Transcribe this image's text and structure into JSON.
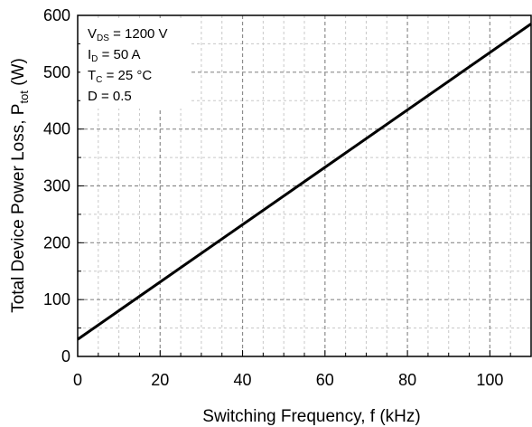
{
  "chart_data": {
    "type": "line",
    "xlabel": "Switching Frequency, f (kHz)",
    "ylabel_main": "Total Device Power Loss, P",
    "ylabel_sub": "tot",
    "ylabel_unit": " (W)",
    "xlim": [
      0,
      110
    ],
    "ylim": [
      0,
      600
    ],
    "x_ticks": [
      0,
      20,
      40,
      60,
      80,
      100
    ],
    "y_ticks": [
      0,
      100,
      200,
      300,
      400,
      500,
      600
    ],
    "x_minor_step": 5,
    "y_minor_step": 50,
    "grid": true,
    "series": [
      {
        "x": [
          0,
          110
        ],
        "y": [
          30,
          585
        ],
        "color": "#000000"
      }
    ],
    "conditions": [
      {
        "main": "V",
        "sub": "DS",
        "rest": " = 1200 V"
      },
      {
        "main": "I",
        "sub": "D",
        "rest": " = 50 A"
      },
      {
        "main": "T",
        "sub": "C",
        "rest": " = 25 °C"
      },
      {
        "main": "D = 0.5",
        "sub": "",
        "rest": ""
      }
    ]
  }
}
